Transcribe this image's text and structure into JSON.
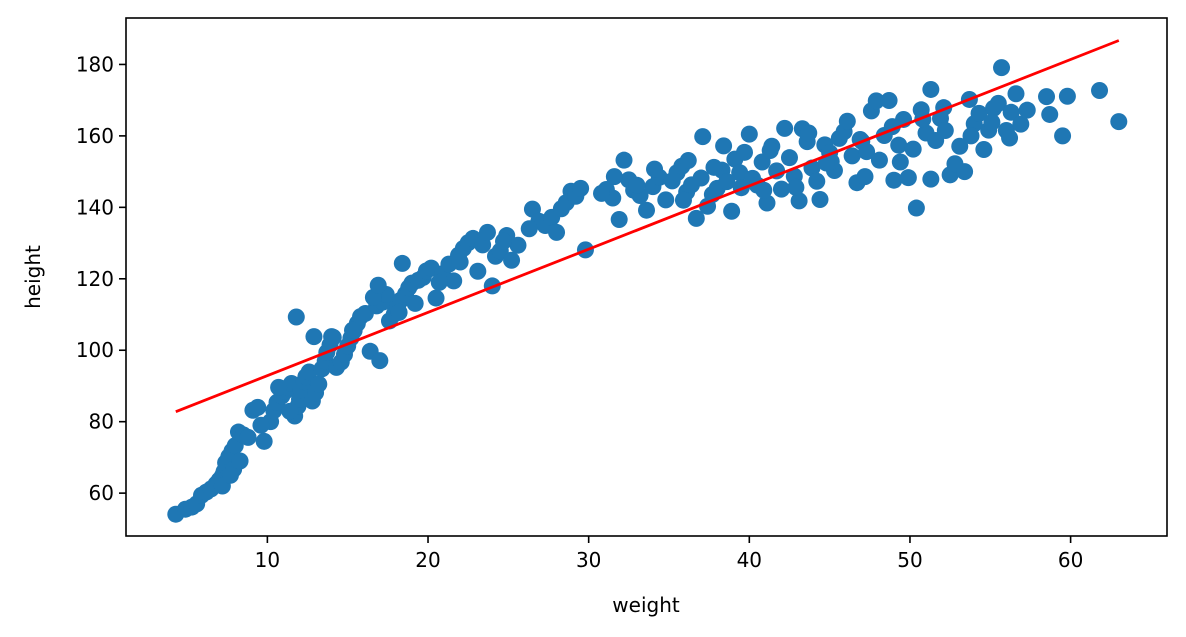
{
  "chart_data": {
    "type": "scatter",
    "title": "",
    "xlabel": "weight",
    "ylabel": "height",
    "xlim": [
      1.2,
      66
    ],
    "ylim": [
      48,
      193
    ],
    "xticks": [
      10,
      20,
      30,
      40,
      50,
      60
    ],
    "yticks": [
      60,
      80,
      100,
      120,
      140,
      160,
      180
    ],
    "grid": false,
    "colors": {
      "points": "#1f77b4",
      "fit_line": "#ff0000"
    },
    "fit_line": {
      "x": [
        4.3,
        63.0
      ],
      "y": [
        82.8,
        186.7
      ]
    },
    "points": [
      [
        4.3,
        54.1
      ],
      [
        4.9,
        55.5
      ],
      [
        5.3,
        56.1
      ],
      [
        5.6,
        57.0
      ],
      [
        5.9,
        59.4
      ],
      [
        6.2,
        60.3
      ],
      [
        6.5,
        61.2
      ],
      [
        6.8,
        62.5
      ],
      [
        7.0,
        63.6
      ],
      [
        7.2,
        64.8
      ],
      [
        7.3,
        66.0
      ],
      [
        7.5,
        67.2
      ],
      [
        7.4,
        68.5
      ],
      [
        7.6,
        70.2
      ],
      [
        7.8,
        71.8
      ],
      [
        8.0,
        73.3
      ],
      [
        7.2,
        62.0
      ],
      [
        7.9,
        66.7
      ],
      [
        8.2,
        77.1
      ],
      [
        8.5,
        76.3
      ],
      [
        8.8,
        75.6
      ],
      [
        9.1,
        83.2
      ],
      [
        9.4,
        84.0
      ],
      [
        9.8,
        74.5
      ],
      [
        10.2,
        80.0
      ],
      [
        10.4,
        83.1
      ],
      [
        10.6,
        85.4
      ],
      [
        10.9,
        87.2
      ],
      [
        11.1,
        88.5
      ],
      [
        11.3,
        89.6
      ],
      [
        11.5,
        90.7
      ],
      [
        11.7,
        81.6
      ],
      [
        11.9,
        84.3
      ],
      [
        12.0,
        86.2
      ],
      [
        12.1,
        88.9
      ],
      [
        12.3,
        91.2
      ],
      [
        12.4,
        92.6
      ],
      [
        12.6,
        93.9
      ],
      [
        11.8,
        109.3
      ],
      [
        12.8,
        85.8
      ],
      [
        13.0,
        88.1
      ],
      [
        13.2,
        90.5
      ],
      [
        13.4,
        94.8
      ],
      [
        13.6,
        97.0
      ],
      [
        13.7,
        99.4
      ],
      [
        13.9,
        101.5
      ],
      [
        14.1,
        103.6
      ],
      [
        14.3,
        95.2
      ],
      [
        14.6,
        96.7
      ],
      [
        14.8,
        98.8
      ],
      [
        15.0,
        101.2
      ],
      [
        15.2,
        103.4
      ],
      [
        15.4,
        105.5
      ],
      [
        15.6,
        107.5
      ],
      [
        15.8,
        109.4
      ],
      [
        16.1,
        110.3
      ],
      [
        16.4,
        99.7
      ],
      [
        16.8,
        112.4
      ],
      [
        17.0,
        97.1
      ],
      [
        17.2,
        113.5
      ],
      [
        17.4,
        115.6
      ],
      [
        17.6,
        108.2
      ],
      [
        17.9,
        110.1
      ],
      [
        18.1,
        112.2
      ],
      [
        18.3,
        114.0
      ],
      [
        18.6,
        115.7
      ],
      [
        18.8,
        117.5
      ],
      [
        19.0,
        118.8
      ],
      [
        19.4,
        119.6
      ],
      [
        19.7,
        120.4
      ],
      [
        18.4,
        124.3
      ],
      [
        19.9,
        122.2
      ],
      [
        20.2,
        123.0
      ],
      [
        20.5,
        114.6
      ],
      [
        20.9,
        121.4
      ],
      [
        21.3,
        124.1
      ],
      [
        21.6,
        119.4
      ],
      [
        21.9,
        126.6
      ],
      [
        22.2,
        128.5
      ],
      [
        22.5,
        130.1
      ],
      [
        22.8,
        131.3
      ],
      [
        23.1,
        122.1
      ],
      [
        23.4,
        129.5
      ],
      [
        23.7,
        133.0
      ],
      [
        24.0,
        118.0
      ],
      [
        24.2,
        126.3
      ],
      [
        24.5,
        127.8
      ],
      [
        24.9,
        132.1
      ],
      [
        25.2,
        125.2
      ],
      [
        25.6,
        129.4
      ],
      [
        26.5,
        139.5
      ],
      [
        26.9,
        136.1
      ],
      [
        27.3,
        134.9
      ],
      [
        27.7,
        137.2
      ],
      [
        28.0,
        133.0
      ],
      [
        28.3,
        139.6
      ],
      [
        28.6,
        141.3
      ],
      [
        28.9,
        144.5
      ],
      [
        29.2,
        143.1
      ],
      [
        29.5,
        145.3
      ],
      [
        29.8,
        128.1
      ],
      [
        31.1,
        145.0
      ],
      [
        31.5,
        142.6
      ],
      [
        31.9,
        136.6
      ],
      [
        32.2,
        153.2
      ],
      [
        32.5,
        147.7
      ],
      [
        32.8,
        144.8
      ],
      [
        33.2,
        143.3
      ],
      [
        33.6,
        139.2
      ],
      [
        34.0,
        145.8
      ],
      [
        34.4,
        148.4
      ],
      [
        34.8,
        142.1
      ],
      [
        35.2,
        147.4
      ],
      [
        35.5,
        149.7
      ],
      [
        35.8,
        151.5
      ],
      [
        36.1,
        144.3
      ],
      [
        36.4,
        146.3
      ],
      [
        36.7,
        136.9
      ],
      [
        37.0,
        148.2
      ],
      [
        37.1,
        159.8
      ],
      [
        37.4,
        140.3
      ],
      [
        37.7,
        143.6
      ],
      [
        38.0,
        145.3
      ],
      [
        38.3,
        150.4
      ],
      [
        38.6,
        147.2
      ],
      [
        38.9,
        138.9
      ],
      [
        39.1,
        153.5
      ],
      [
        39.4,
        149.7
      ],
      [
        39.7,
        155.4
      ],
      [
        40.0,
        160.5
      ],
      [
        40.2,
        148.1
      ],
      [
        40.5,
        146.2
      ],
      [
        40.8,
        152.7
      ],
      [
        41.1,
        141.2
      ],
      [
        41.4,
        157.1
      ],
      [
        41.7,
        150.2
      ],
      [
        42.0,
        145.1
      ],
      [
        42.2,
        162.1
      ],
      [
        42.5,
        153.9
      ],
      [
        42.8,
        148.7
      ],
      [
        43.1,
        141.8
      ],
      [
        43.3,
        162.0
      ],
      [
        43.6,
        158.4
      ],
      [
        43.9,
        151.0
      ],
      [
        44.2,
        147.3
      ],
      [
        44.4,
        142.2
      ],
      [
        44.7,
        157.5
      ],
      [
        45.0,
        155.3
      ],
      [
        45.3,
        150.3
      ],
      [
        45.6,
        159.3
      ],
      [
        45.9,
        161.2
      ],
      [
        46.1,
        164.1
      ],
      [
        46.4,
        154.4
      ],
      [
        46.7,
        146.9
      ],
      [
        47.0,
        158.5
      ],
      [
        47.3,
        155.6
      ],
      [
        47.6,
        167.0
      ],
      [
        47.9,
        169.8
      ],
      [
        48.1,
        153.2
      ],
      [
        48.4,
        160.1
      ],
      [
        48.7,
        169.9
      ],
      [
        49.0,
        147.6
      ],
      [
        49.3,
        157.4
      ],
      [
        49.6,
        164.6
      ],
      [
        49.9,
        148.3
      ],
      [
        50.2,
        156.3
      ],
      [
        50.4,
        139.8
      ],
      [
        50.7,
        167.3
      ],
      [
        51.0,
        160.8
      ],
      [
        51.3,
        147.9
      ],
      [
        51.3,
        173.0
      ],
      [
        51.6,
        158.7
      ],
      [
        51.9,
        164.9
      ],
      [
        52.2,
        161.5
      ],
      [
        52.5,
        149.1
      ],
      [
        52.8,
        152.2
      ],
      [
        53.1,
        157.1
      ],
      [
        53.4,
        150.0
      ],
      [
        53.7,
        170.2
      ],
      [
        54.0,
        163.4
      ],
      [
        54.3,
        166.3
      ],
      [
        54.6,
        156.2
      ],
      [
        54.9,
        161.6
      ],
      [
        55.2,
        167.7
      ],
      [
        55.5,
        169.1
      ],
      [
        55.7,
        179.1
      ],
      [
        56.0,
        161.5
      ],
      [
        56.3,
        166.6
      ],
      [
        56.6,
        171.8
      ],
      [
        56.9,
        163.3
      ],
      [
        57.3,
        167.2
      ],
      [
        58.5,
        171.0
      ],
      [
        58.7,
        166.0
      ],
      [
        59.5,
        160.0
      ],
      [
        59.8,
        171.1
      ],
      [
        61.8,
        172.7
      ],
      [
        63.0,
        164.0
      ],
      [
        36.2,
        153.1
      ],
      [
        35.9,
        142.0
      ],
      [
        37.8,
        151.2
      ],
      [
        39.5,
        145.5
      ],
      [
        41.3,
        155.9
      ],
      [
        43.7,
        160.8
      ],
      [
        45.1,
        152.8
      ],
      [
        46.9,
        159.0
      ],
      [
        48.9,
        162.6
      ],
      [
        50.8,
        164.7
      ],
      [
        52.1,
        167.9
      ],
      [
        53.8,
        160.0
      ],
      [
        55.1,
        163.8
      ],
      [
        56.2,
        159.4
      ],
      [
        34.1,
        150.7
      ],
      [
        33.0,
        146.2
      ],
      [
        30.8,
        143.9
      ],
      [
        31.6,
        148.6
      ],
      [
        26.3,
        134.0
      ],
      [
        24.7,
        130.5
      ],
      [
        22.0,
        124.7
      ],
      [
        20.7,
        119.0
      ],
      [
        19.2,
        113.1
      ],
      [
        16.6,
        114.8
      ],
      [
        15.3,
        105.6
      ],
      [
        14.0,
        103.8
      ],
      [
        12.9,
        103.8
      ],
      [
        11.4,
        82.9
      ],
      [
        10.7,
        89.6
      ],
      [
        9.6,
        79.0
      ],
      [
        8.3,
        69.0
      ],
      [
        7.7,
        65.0
      ],
      [
        16.9,
        118.2
      ],
      [
        18.2,
        110.6
      ],
      [
        42.9,
        145.6
      ],
      [
        44.8,
        152.4
      ],
      [
        47.2,
        148.6
      ],
      [
        49.4,
        152.7
      ],
      [
        38.4,
        157.2
      ],
      [
        40.9,
        144.8
      ]
    ]
  }
}
